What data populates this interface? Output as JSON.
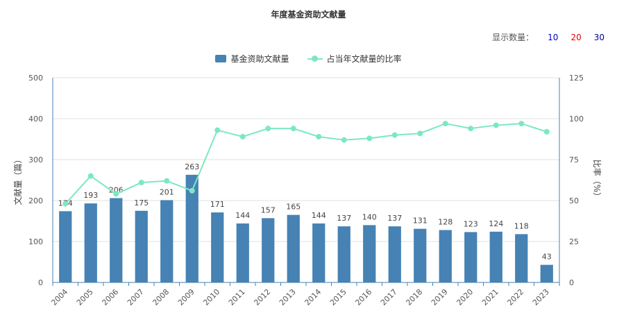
{
  "title": "年度基金资助文献量",
  "display_count": {
    "label": "显示数量：",
    "options": [
      {
        "label": "10",
        "color": "#0000cc"
      },
      {
        "label": "20",
        "color": "#e60000"
      },
      {
        "label": "30",
        "color": "#000099"
      }
    ]
  },
  "colors": {
    "bar": "#4682b4",
    "line": "#7ce8c0",
    "grid": "#e0e0e0",
    "axis": "#4682b4"
  },
  "chart_data": {
    "type": "bar",
    "categories": [
      "2004",
      "2005",
      "2006",
      "2007",
      "2008",
      "2009",
      "2010",
      "2011",
      "2012",
      "2013",
      "2014",
      "2015",
      "2016",
      "2017",
      "2018",
      "2019",
      "2020",
      "2021",
      "2022",
      "2023"
    ],
    "series": [
      {
        "name": "基金资助文献量",
        "type": "bar",
        "axis": "left",
        "values": [
          174,
          193,
          206,
          175,
          201,
          263,
          171,
          144,
          157,
          165,
          144,
          137,
          140,
          137,
          131,
          128,
          123,
          124,
          118,
          43
        ]
      },
      {
        "name": "占当年文献量的比率",
        "type": "line",
        "axis": "right",
        "values": [
          48,
          65,
          54,
          61,
          62,
          56,
          93,
          89,
          94,
          94,
          89,
          87,
          88,
          90,
          91,
          97,
          94,
          96,
          97,
          92
        ]
      }
    ],
    "ylabel": "文献量（篇）",
    "ylabel_right": "比率（%）",
    "ylim": [
      0,
      500
    ],
    "yticks": [
      0,
      100,
      200,
      300,
      400,
      500
    ],
    "ylim_right": [
      0,
      125
    ],
    "yticks_right": [
      0,
      25,
      50,
      75,
      100,
      125
    ],
    "legend": "top-center",
    "grid": true
  }
}
